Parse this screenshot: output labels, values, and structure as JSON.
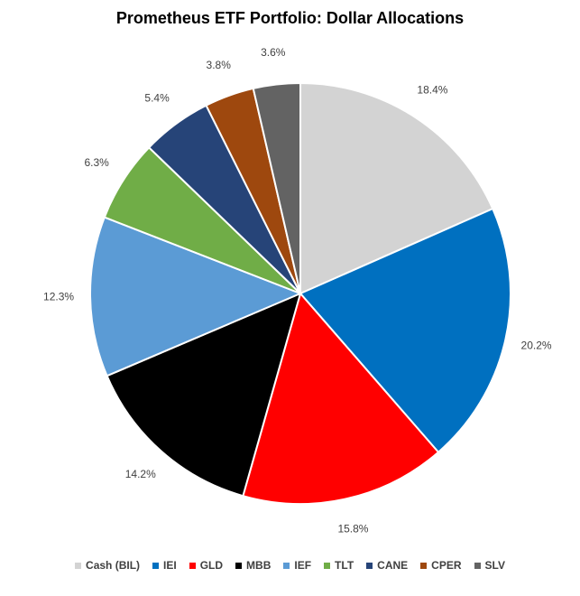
{
  "chart_data": {
    "type": "pie",
    "title": "Prometheus ETF Portfolio: Dollar Allocations",
    "slices": [
      {
        "name": "Cash (BIL)",
        "value": 18.4,
        "label": "18.4%",
        "color": "#D3D3D3"
      },
      {
        "name": "IEI",
        "value": 20.2,
        "label": "20.2%",
        "color": "#0070C0"
      },
      {
        "name": "GLD",
        "value": 15.8,
        "label": "15.8%",
        "color": "#FF0000"
      },
      {
        "name": "MBB",
        "value": 14.2,
        "label": "14.2%",
        "color": "#000000"
      },
      {
        "name": "IEF",
        "value": 12.3,
        "label": "12.3%",
        "color": "#5B9BD5"
      },
      {
        "name": "TLT",
        "value": 6.3,
        "label": "6.3%",
        "color": "#70AD47"
      },
      {
        "name": "CANE",
        "value": 5.4,
        "label": "5.4%",
        "color": "#264478"
      },
      {
        "name": "CPER",
        "value": 3.8,
        "label": "3.8%",
        "color": "#9E480E"
      },
      {
        "name": "SLV",
        "value": 3.6,
        "label": "3.6%",
        "color": "#636363"
      }
    ],
    "legend_position": "bottom"
  }
}
